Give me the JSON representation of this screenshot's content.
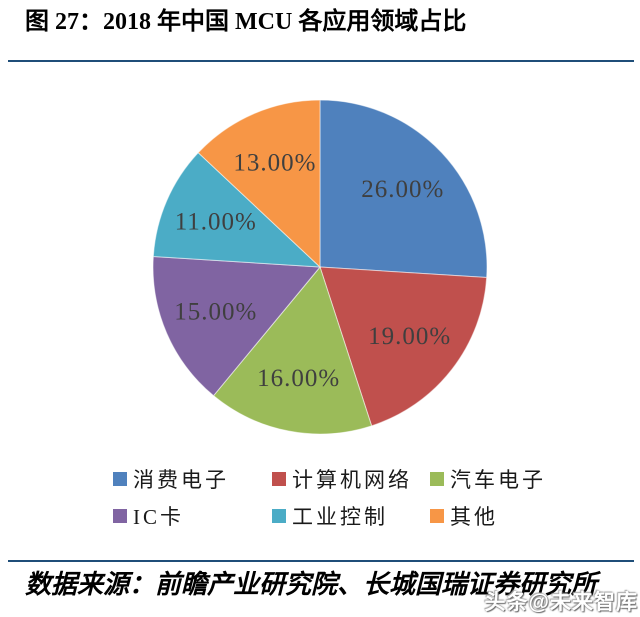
{
  "page": {
    "title": "图 27：2018 年中国 MCU 各应用领域占比",
    "source_note": "数据来源：前瞻产业研究院、长城国瑞证券研究所",
    "watermark": "头条@未来智库",
    "divider_color": "#1F4E79"
  },
  "chart_data": {
    "type": "pie",
    "title": "2018 年中国 MCU 各应用领域占比",
    "start_angle_deg": 0,
    "direction": "clockwise",
    "legend_position": "bottom",
    "label_format": "0.00%",
    "label_color": "#3F3F3F",
    "slices": [
      {
        "label": "消费电子",
        "value": 26,
        "display": "26.00%",
        "color": "#4F81BD"
      },
      {
        "label": "计算机网络",
        "value": 19,
        "display": "19.00%",
        "color": "#C0504D"
      },
      {
        "label": "汽车电子",
        "value": 16,
        "display": "16.00%",
        "color": "#9BBB59"
      },
      {
        "label": "IC卡",
        "value": 15,
        "display": "15.00%",
        "color": "#8064A2"
      },
      {
        "label": "工业控制",
        "value": 11,
        "display": "11.00%",
        "color": "#4BACC6"
      },
      {
        "label": "其他",
        "value": 13,
        "display": "13.00%",
        "color": "#F79646"
      }
    ]
  }
}
